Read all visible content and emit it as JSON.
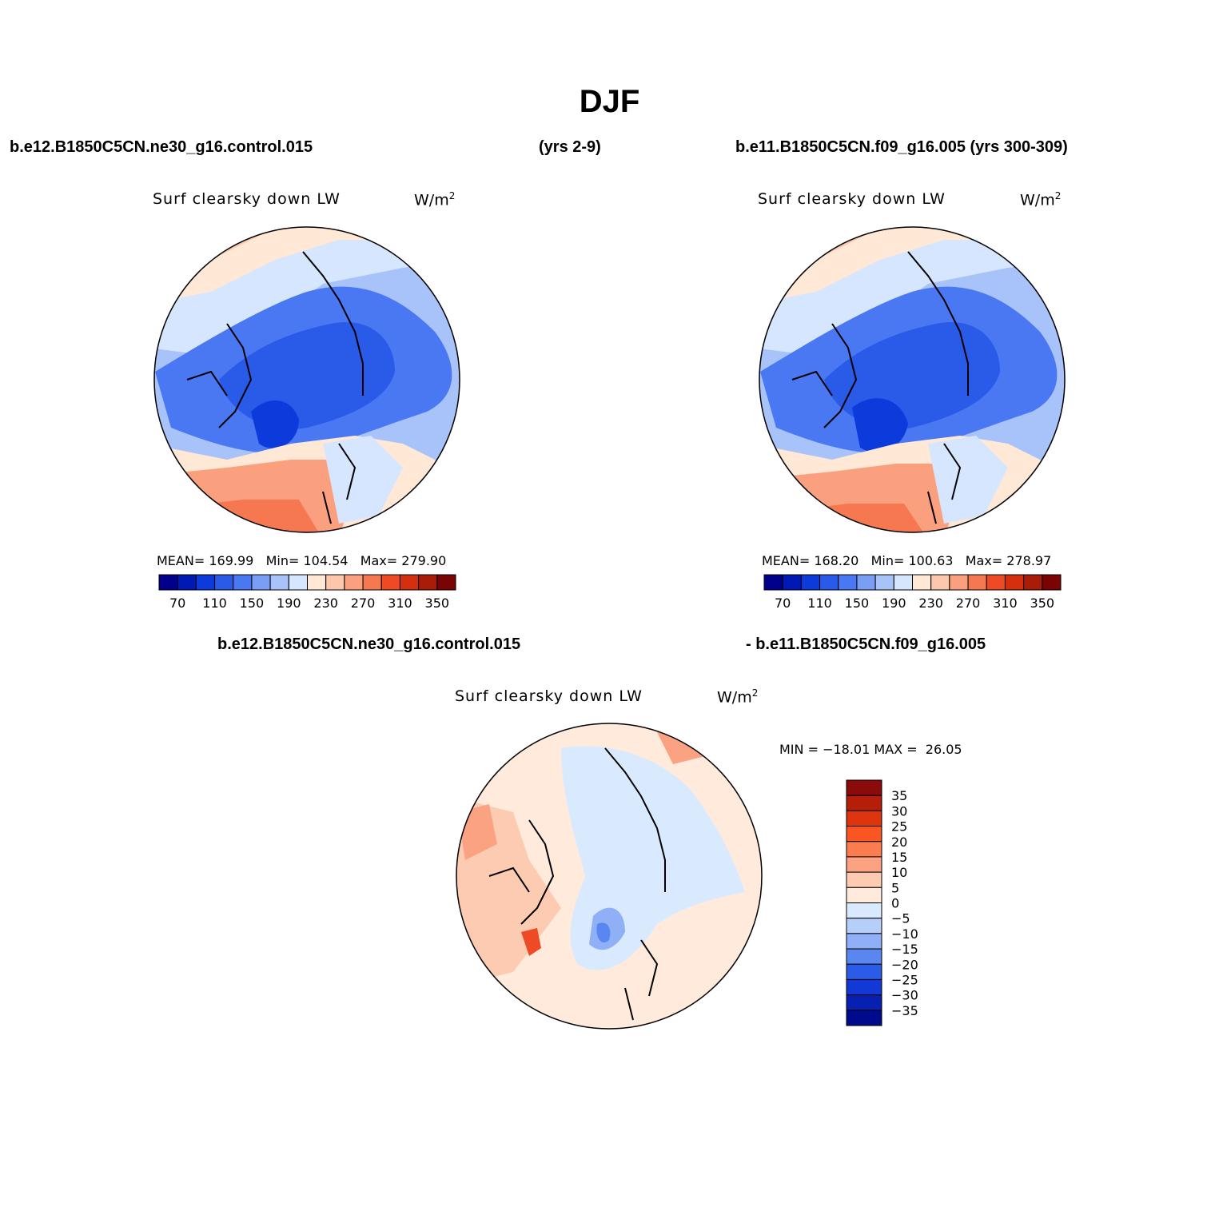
{
  "figure": {
    "title": "DJF",
    "header": {
      "case1": "b.e12.B1850C5CN.ne30_g16.control.015",
      "case1_years": "(yrs 2-9)",
      "case2": "b.e11.B1850C5CN.f09_g16.005 (yrs 300-309)",
      "diff_left": "b.e12.B1850C5CN.ne30_g16.control.015",
      "diff_right": "- b.e11.B1850C5CN.f09_g16.005"
    }
  },
  "chart_data": [
    {
      "type": "heatmap",
      "projection": "north-polar-stereographic",
      "title": "Surf clearsky down LW",
      "units": "W/m²",
      "units_base": "W/m",
      "units_exp": "2",
      "stats": {
        "mean_label": "MEAN=",
        "mean": "169.99",
        "min_label": "Min=",
        "min": "104.54",
        "max_label": "Max=",
        "max": "279.90"
      },
      "levels": [
        70,
        90,
        110,
        130,
        150,
        170,
        190,
        210,
        230,
        250,
        270,
        290,
        310,
        330,
        350
      ],
      "tick_labels": [
        "70",
        "110",
        "150",
        "190",
        "230",
        "270",
        "310",
        "350"
      ],
      "colors": [
        "#00008b",
        "#0019b4",
        "#0d3adb",
        "#2a5ae8",
        "#4a78f2",
        "#7b9ef5",
        "#a8c2fa",
        "#d6e6ff",
        "#ffe8d6",
        "#fdc7ad",
        "#fba07e",
        "#f67850",
        "#ee4a25",
        "#d42f0e",
        "#a81c08",
        "#7a0403"
      ]
    },
    {
      "type": "heatmap",
      "projection": "north-polar-stereographic",
      "title": "Surf clearsky down LW",
      "units": "W/m²",
      "units_base": "W/m",
      "units_exp": "2",
      "stats": {
        "mean_label": "MEAN=",
        "mean": "168.20",
        "min_label": "Min=",
        "min": "100.63",
        "max_label": "Max=",
        "max": "278.97"
      },
      "levels": [
        70,
        90,
        110,
        130,
        150,
        170,
        190,
        210,
        230,
        250,
        270,
        290,
        310,
        330,
        350
      ],
      "tick_labels": [
        "70",
        "110",
        "150",
        "190",
        "230",
        "270",
        "310",
        "350"
      ],
      "colors": [
        "#00008b",
        "#0019b4",
        "#0d3adb",
        "#2a5ae8",
        "#4a78f2",
        "#7b9ef5",
        "#a8c2fa",
        "#d6e6ff",
        "#ffe8d6",
        "#fdc7ad",
        "#fba07e",
        "#f67850",
        "#ee4a25",
        "#d42f0e",
        "#a81c08",
        "#7a0403"
      ]
    },
    {
      "type": "heatmap",
      "projection": "north-polar-stereographic",
      "title": "Surf clearsky down LW",
      "units": "W/m²",
      "units_base": "W/m",
      "units_exp": "2",
      "stats": {
        "min_label": "MIN =",
        "min": "−18.01",
        "max_label": "MAX =",
        "max": "26.05"
      },
      "levels_top_to_bottom": [
        "35",
        "30",
        "25",
        "20",
        "15",
        "10",
        "5",
        "0",
        "−5",
        "−10",
        "−15",
        "−20",
        "−25",
        "−30",
        "−35"
      ],
      "colors_top_to_bottom": [
        "#8b0a0a",
        "#b51e08",
        "#de350f",
        "#fa5523",
        "#fb7c4e",
        "#fba283",
        "#fdcbb2",
        "#ffeadc",
        "#d9eaff",
        "#b6cffa",
        "#8fb0f7",
        "#5a86f0",
        "#2b5ce8",
        "#1238d6",
        "#0620b2",
        "#000a8c"
      ]
    }
  ]
}
